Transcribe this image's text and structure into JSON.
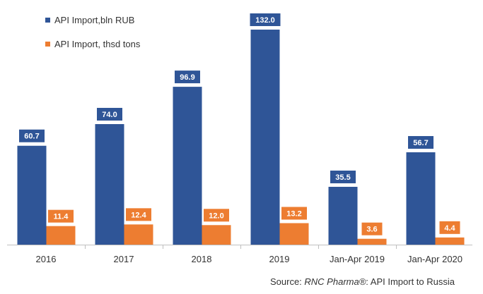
{
  "chart_data": {
    "type": "bar",
    "categories": [
      "2016",
      "2017",
      "2018",
      "2019",
      "Jan-Apr 2019",
      "Jan-Apr 2020"
    ],
    "series": [
      {
        "name": "API Import,bln RUB",
        "color": "#2f5597",
        "values": [
          60.7,
          74.0,
          96.9,
          132.0,
          35.5,
          56.7
        ],
        "labels": [
          "60.7",
          "74.0",
          "96.9",
          "132.0",
          "35.5",
          "56.7"
        ]
      },
      {
        "name": "API Import, thsd tons",
        "color": "#ed7d31",
        "values": [
          11.4,
          12.4,
          12.0,
          13.2,
          3.6,
          4.4
        ],
        "labels": [
          "11.4",
          "12.4",
          "12.0",
          "13.2",
          "3.6",
          "4.4"
        ]
      }
    ],
    "ylim": [
      0,
      132
    ],
    "grid": false,
    "legend_position": "top-left"
  },
  "source": {
    "prefix": "Source: ",
    "brand": "RNC Pharma®",
    "suffix": ": API Import to Russia"
  }
}
